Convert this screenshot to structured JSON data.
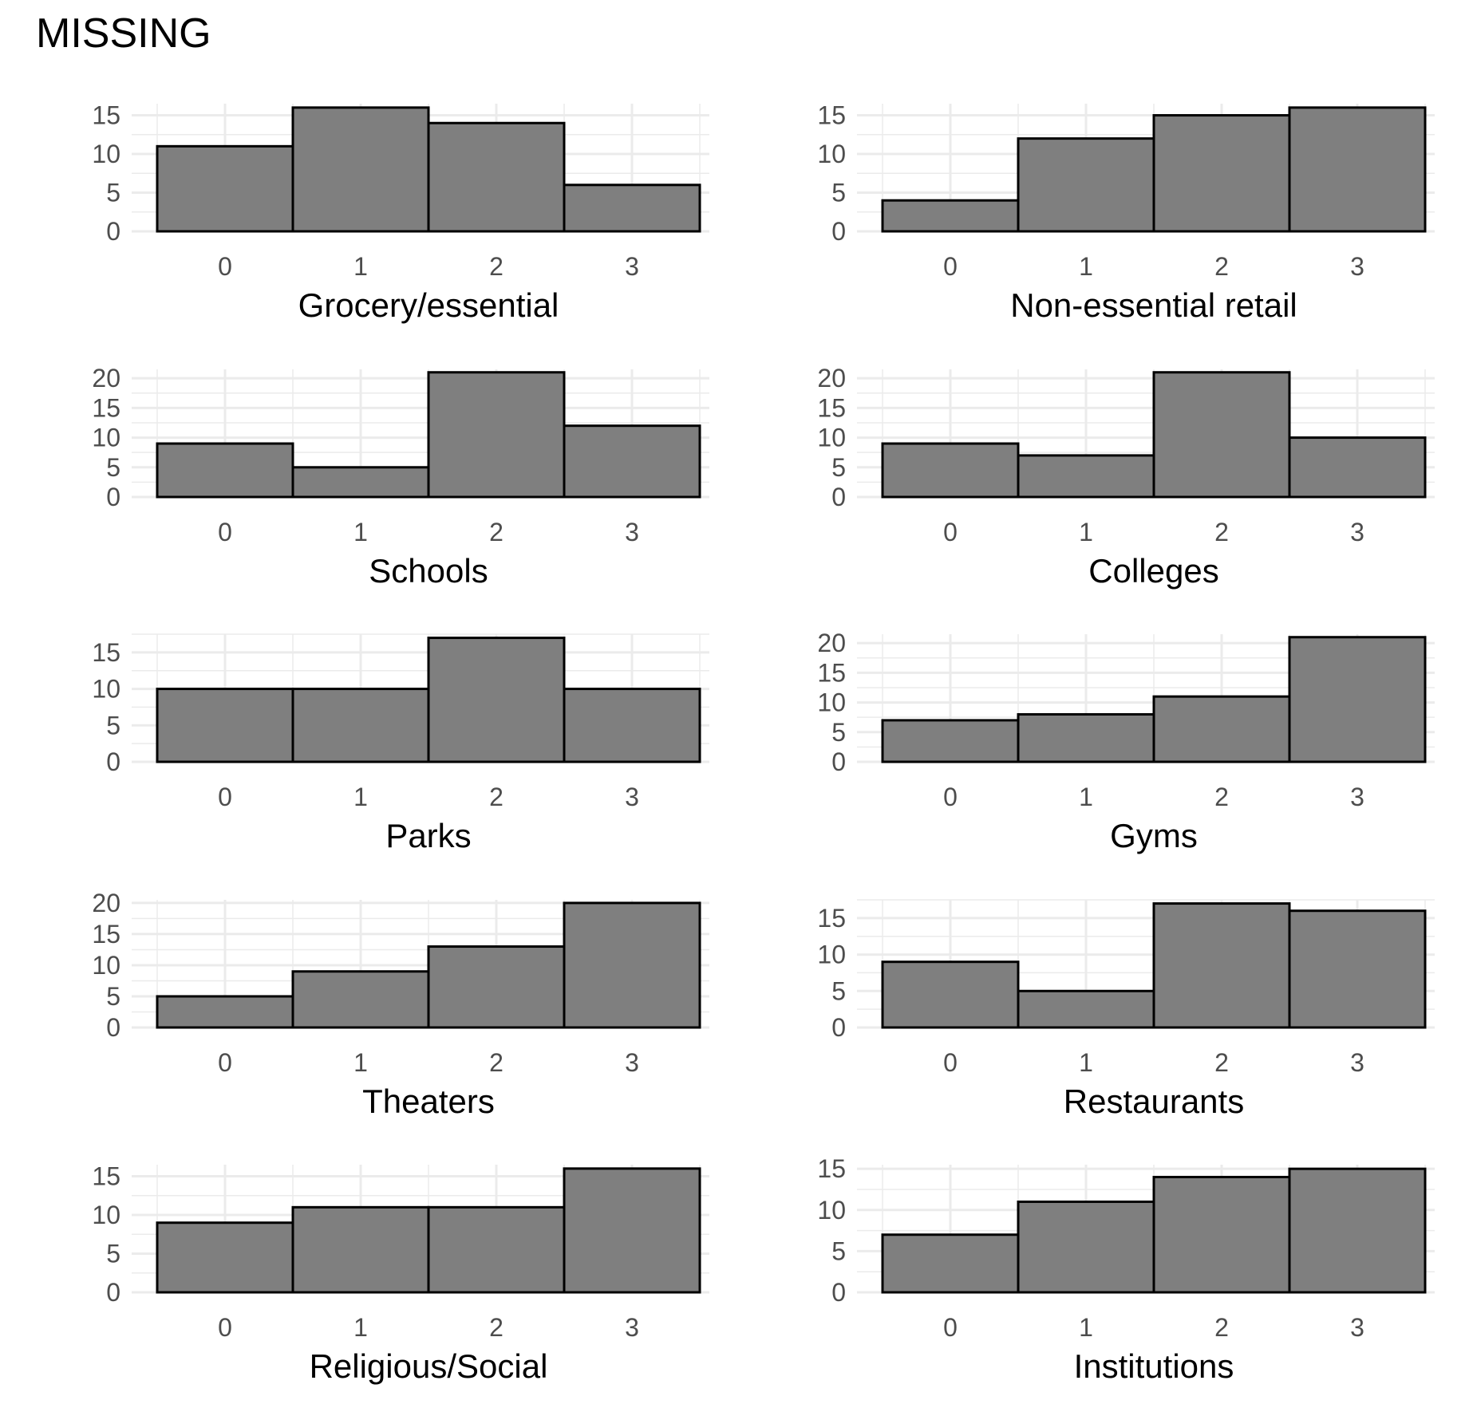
{
  "title": "MISSING",
  "colors": {
    "bar_fill": "#7f7f7f",
    "bar_stroke": "#000000",
    "grid": "#ebebeb",
    "tick_text": "#4d4d4d"
  },
  "chart_data": [
    {
      "type": "bar",
      "categories": [
        "0",
        "1",
        "2",
        "3"
      ],
      "values": [
        11,
        16,
        14,
        6
      ],
      "xlabel": "Grocery/essential",
      "ylabel": "",
      "yticks": [
        0,
        5,
        10,
        15
      ],
      "ylim": [
        0,
        16.5
      ],
      "grid": true
    },
    {
      "type": "bar",
      "categories": [
        "0",
        "1",
        "2",
        "3"
      ],
      "values": [
        4,
        12,
        15,
        16
      ],
      "xlabel": "Non-essential retail",
      "ylabel": "",
      "yticks": [
        0,
        5,
        10,
        15
      ],
      "ylim": [
        0,
        16.5
      ],
      "grid": true
    },
    {
      "type": "bar",
      "categories": [
        "0",
        "1",
        "2",
        "3"
      ],
      "values": [
        9,
        5,
        21,
        12
      ],
      "xlabel": "Schools",
      "ylabel": "",
      "yticks": [
        0,
        5,
        10,
        15,
        20
      ],
      "ylim": [
        0,
        21.5
      ],
      "grid": true
    },
    {
      "type": "bar",
      "categories": [
        "0",
        "1",
        "2",
        "3"
      ],
      "values": [
        9,
        7,
        21,
        10
      ],
      "xlabel": "Colleges",
      "ylabel": "",
      "yticks": [
        0,
        5,
        10,
        15,
        20
      ],
      "ylim": [
        0,
        21.5
      ],
      "grid": true
    },
    {
      "type": "bar",
      "categories": [
        "0",
        "1",
        "2",
        "3"
      ],
      "values": [
        10,
        10,
        17,
        10
      ],
      "xlabel": "Parks",
      "ylabel": "",
      "yticks": [
        0,
        5,
        10,
        15
      ],
      "ylim": [
        0,
        17.5
      ],
      "grid": true
    },
    {
      "type": "bar",
      "categories": [
        "0",
        "1",
        "2",
        "3"
      ],
      "values": [
        7,
        8,
        11,
        21
      ],
      "xlabel": "Gyms",
      "ylabel": "",
      "yticks": [
        0,
        5,
        10,
        15,
        20
      ],
      "ylim": [
        0,
        21.5
      ],
      "grid": true
    },
    {
      "type": "bar",
      "categories": [
        "0",
        "1",
        "2",
        "3"
      ],
      "values": [
        5,
        9,
        13,
        20
      ],
      "xlabel": "Theaters",
      "ylabel": "",
      "yticks": [
        0,
        5,
        10,
        15,
        20
      ],
      "ylim": [
        0,
        20.5
      ],
      "grid": true
    },
    {
      "type": "bar",
      "categories": [
        "0",
        "1",
        "2",
        "3"
      ],
      "values": [
        9,
        5,
        17,
        16
      ],
      "xlabel": "Restaurants",
      "ylabel": "",
      "yticks": [
        0,
        5,
        10,
        15
      ],
      "ylim": [
        0,
        17.5
      ],
      "grid": true
    },
    {
      "type": "bar",
      "categories": [
        "0",
        "1",
        "2",
        "3"
      ],
      "values": [
        9,
        11,
        11,
        16
      ],
      "xlabel": "Religious/Social",
      "ylabel": "",
      "yticks": [
        0,
        5,
        10,
        15
      ],
      "ylim": [
        0,
        16.5
      ],
      "grid": true
    },
    {
      "type": "bar",
      "categories": [
        "0",
        "1",
        "2",
        "3"
      ],
      "values": [
        7,
        11,
        14,
        15
      ],
      "xlabel": "Institutions",
      "ylabel": "",
      "yticks": [
        0,
        5,
        10,
        15
      ],
      "ylim": [
        0,
        15.5
      ],
      "grid": true
    }
  ]
}
